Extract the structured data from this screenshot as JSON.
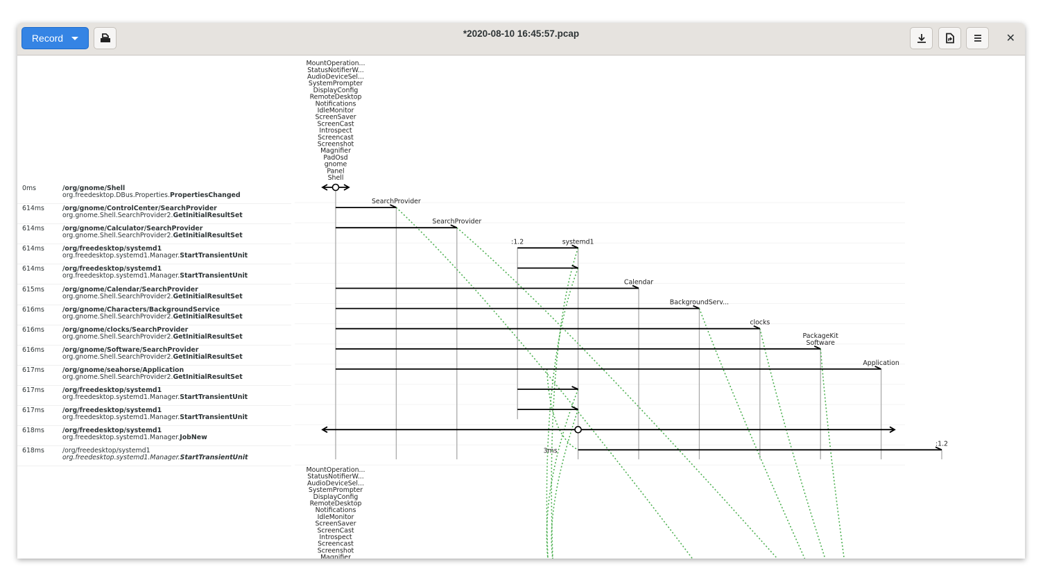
{
  "window": {
    "title": "*2020-08-10 16:45:57.pcap"
  },
  "toolbar": {
    "record_label": "Record",
    "record_icon": "chevron-down-icon",
    "open_icon": "document-open-icon",
    "save_icon": "download-icon",
    "export_icon": "document-export-icon",
    "menu_icon": "hamburger-menu-icon",
    "close_icon": "close-icon"
  },
  "colors": {
    "accent": "#3584e4",
    "return_line": "#4caf50",
    "arrow": "#000000"
  },
  "lanes": [
    {
      "labels": [
        "MountOperation...",
        "StatusNotifierW...",
        "AudioDeviceSel...",
        "SystemPrompter",
        "DisplayConfig",
        "RemoteDesktop",
        "Notifications",
        "IdleMonitor",
        "ScreenSaver",
        "ScreenCast",
        "Introspect",
        "Screencast",
        "Screenshot",
        "Magnifier",
        "PadOsd",
        "gnome",
        "Panel",
        "Shell"
      ],
      "first_row": 0
    },
    {
      "labels": [
        "SearchProvider"
      ],
      "first_row": 1
    },
    {
      "labels": [
        "SearchProvider"
      ],
      "first_row": 2
    },
    {
      "labels": [
        ":1.2"
      ],
      "first_row": 3,
      "last_row": 11
    },
    {
      "labels": [
        "systemd1"
      ],
      "first_row": 3
    },
    {
      "labels": [
        "Calendar"
      ],
      "first_row": 5
    },
    {
      "labels": [
        "BackgroundServ..."
      ],
      "first_row": 6
    },
    {
      "labels": [
        "clocks"
      ],
      "first_row": 7
    },
    {
      "labels": [
        "PackageKit",
        "Software"
      ],
      "first_row": 8
    },
    {
      "labels": [
        "Application"
      ],
      "first_row": 9
    },
    {
      "labels": [
        ":1.2"
      ],
      "first_row": 13
    }
  ],
  "bottom_labels": [
    "MountOperation...",
    "StatusNotifierW...",
    "AudioDeviceSel...",
    "SystemPrompter",
    "DisplayConfig",
    "RemoteDesktop",
    "Notifications",
    "IdleMonitor",
    "ScreenSaver",
    "ScreenCast",
    "Introspect",
    "Screencast",
    "Screenshot",
    "Magnifier"
  ],
  "messages": [
    {
      "time": "0ms",
      "path": "/org/gnome/Shell",
      "interface": "org.freedesktop.DBus.Properties.",
      "member": "PropertiesChanged",
      "kind": "signal",
      "from": 0
    },
    {
      "time": "614ms",
      "path": "/org/gnome/ControlCenter/SearchProvider",
      "interface": "org.gnome.Shell.SearchProvider2.",
      "member": "GetInitialResultSet",
      "kind": "call",
      "from": 0,
      "to": 1,
      "returned": true
    },
    {
      "time": "614ms",
      "path": "/org/gnome/Calculator/SearchProvider",
      "interface": "org.gnome.Shell.SearchProvider2.",
      "member": "GetInitialResultSet",
      "kind": "call",
      "from": 0,
      "to": 2,
      "returned": true
    },
    {
      "time": "614ms",
      "path": "/org/freedesktop/systemd1",
      "interface": "org.freedesktop.systemd1.Manager.",
      "member": "StartTransientUnit",
      "kind": "call",
      "from": 3,
      "to": 4,
      "returned": true
    },
    {
      "time": "614ms",
      "path": "/org/freedesktop/systemd1",
      "interface": "org.freedesktop.systemd1.Manager.",
      "member": "StartTransientUnit",
      "kind": "call",
      "from": 3,
      "to": 4,
      "returned": true
    },
    {
      "time": "615ms",
      "path": "/org/gnome/Calendar/SearchProvider",
      "interface": "org.gnome.Shell.SearchProvider2.",
      "member": "GetInitialResultSet",
      "kind": "call",
      "from": 0,
      "to": 5
    },
    {
      "time": "616ms",
      "path": "/org/gnome/Characters/BackgroundService",
      "interface": "org.gnome.Shell.SearchProvider2.",
      "member": "GetInitialResultSet",
      "kind": "call",
      "from": 0,
      "to": 6,
      "returned": true
    },
    {
      "time": "616ms",
      "path": "/org/gnome/clocks/SearchProvider",
      "interface": "org.gnome.Shell.SearchProvider2.",
      "member": "GetInitialResultSet",
      "kind": "call",
      "from": 0,
      "to": 7,
      "returned": true
    },
    {
      "time": "616ms",
      "path": "/org/gnome/Software/SearchProvider",
      "interface": "org.gnome.Shell.SearchProvider2.",
      "member": "GetInitialResultSet",
      "kind": "call",
      "from": 0,
      "to": 8,
      "returned": true
    },
    {
      "time": "617ms",
      "path": "/org/gnome/seahorse/Application",
      "interface": "org.gnome.Shell.SearchProvider2.",
      "member": "GetInitialResultSet",
      "kind": "call",
      "from": 0,
      "to": 9
    },
    {
      "time": "617ms",
      "path": "/org/freedesktop/systemd1",
      "interface": "org.freedesktop.systemd1.Manager.",
      "member": "StartTransientUnit",
      "kind": "call",
      "from": 3,
      "to": 4,
      "returned": true
    },
    {
      "time": "617ms",
      "path": "/org/freedesktop/systemd1",
      "interface": "org.freedesktop.systemd1.Manager.",
      "member": "StartTransientUnit",
      "kind": "call",
      "from": 3,
      "to": 4,
      "returned": true
    },
    {
      "time": "618ms",
      "path": "/org/freedesktop/systemd1",
      "interface": "org.freedesktop.systemd1.Manager.",
      "member": "JobNew",
      "kind": "signal",
      "from": 4
    },
    {
      "time": "618ms",
      "path": "/org/freedesktop/systemd1",
      "interface": "org.freedesktop.systemd1.Manager.",
      "member": "StartTransientUnit",
      "kind": "return",
      "from": 4,
      "to": 10,
      "duration": "3ms",
      "style": "italic"
    }
  ]
}
